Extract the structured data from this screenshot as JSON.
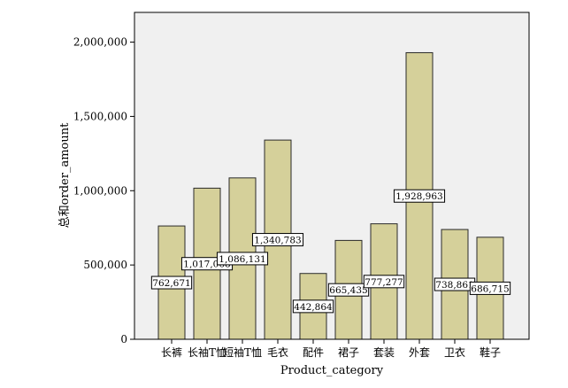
{
  "chart_data": {
    "type": "bar",
    "xlabel": "Product_category",
    "ylabel": "总和order_amount",
    "categories": [
      "长裤",
      "长袖T恤",
      "短袖T恤",
      "毛衣",
      "配件",
      "裙子",
      "套装",
      "外套",
      "卫衣",
      "鞋子"
    ],
    "values": [
      762671,
      1017068,
      1086131,
      1340783,
      442864,
      665435,
      777277,
      1928963,
      738861,
      686715
    ],
    "data_labels": [
      "762,671",
      "1,017,068",
      "1,086,131",
      "1,340,783",
      "442,864",
      "665,435",
      "777,277",
      "1,928,963",
      "738,861",
      "686,715"
    ],
    "yticks": [
      0,
      500000,
      1000000,
      1500000,
      2000000
    ],
    "ytick_labels": [
      "0",
      "500,000",
      "1,000,000",
      "1,500,000",
      "2,000,000"
    ],
    "ylim": [
      0,
      2200000
    ],
    "grid": false,
    "legend": "none",
    "colors": {
      "bar_fill": "#d5d09a",
      "bar_stroke": "#2a2a2a",
      "plot_background": "#f0f0f0",
      "label_box": "#ffffff"
    }
  }
}
